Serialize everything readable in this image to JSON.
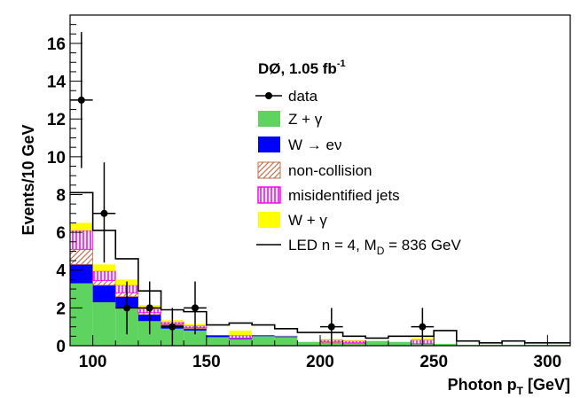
{
  "chart_data": {
    "type": "bar",
    "stacked": true,
    "xlabel": "Photon p",
    "xlabel_sub": "T",
    "xlabel_unit": " [GeV]",
    "ylabel": "Events/10 GeV",
    "annotation": "DØ, 1.05 fb",
    "annotation_sup": "-1",
    "xlim": [
      90,
      310
    ],
    "ylim": [
      0,
      17.5
    ],
    "x_ticks": [
      100,
      150,
      200,
      250,
      300
    ],
    "y_ticks": [
      0,
      2,
      4,
      6,
      8,
      10,
      12,
      14,
      16
    ],
    "bin_edges": [
      90,
      100,
      110,
      120,
      130,
      140,
      150,
      160,
      170,
      180,
      190,
      200,
      210,
      220,
      230,
      240,
      250,
      260,
      270,
      280,
      290,
      300,
      310
    ],
    "stack_order": [
      "Z + γ",
      "W → eν",
      "non-collision",
      "misidentified jets",
      "W + γ"
    ],
    "series": [
      {
        "name": "Z + γ",
        "color": "#5fd35f",
        "values": [
          3.3,
          2.3,
          2.0,
          1.3,
          0.9,
          0.8,
          0.45,
          0.35,
          0.5,
          0.45,
          0.2,
          0.15,
          0.1,
          0.25,
          0.2,
          0.1,
          0.1,
          0.05,
          0.05,
          0.05,
          0.05,
          0.05
        ]
      },
      {
        "name": "W → eν",
        "color": "#0000ff",
        "values": [
          1.0,
          0.9,
          0.6,
          0.35,
          0.2,
          0.1,
          0.1,
          0.05,
          0.05,
          0.05,
          0.0,
          0.0,
          0.0,
          0.0,
          0.0,
          0.0,
          0.0,
          0.0,
          0.0,
          0.0,
          0.0,
          0.0
        ]
      },
      {
        "name": "non-collision",
        "color": "#c07050",
        "hatch": "diagonal",
        "values": [
          0.8,
          0.25,
          0.2,
          0.1,
          0.05,
          0.05,
          0.0,
          0.0,
          0.0,
          0.0,
          0.0,
          0.05,
          0.05,
          0.0,
          0.0,
          0.0,
          0.0,
          0.0,
          0.0,
          0.0,
          0.0,
          0.0
        ]
      },
      {
        "name": "misidentified jets",
        "color": "#ff00ff",
        "hatch": "vertical",
        "values": [
          1.0,
          0.5,
          0.4,
          0.2,
          0.1,
          0.1,
          0.0,
          0.15,
          0.0,
          0.0,
          0.0,
          0.1,
          0.1,
          0.0,
          0.0,
          0.2,
          0.0,
          0.0,
          0.0,
          0.0,
          0.0,
          0.0
        ]
      },
      {
        "name": "W + γ",
        "color": "#ffff00",
        "values": [
          0.4,
          0.35,
          0.3,
          0.2,
          0.1,
          0.1,
          0.0,
          0.25,
          0.0,
          0.05,
          0.0,
          0.05,
          0.05,
          0.0,
          0.0,
          0.1,
          0.0,
          0.0,
          0.0,
          0.0,
          0.0,
          0.0
        ]
      }
    ],
    "led": {
      "name": "LED n = 4, M",
      "name_sub": "D",
      "name_suffix": " = 836 GeV",
      "color": "#000000",
      "values": [
        8.1,
        6.1,
        4.6,
        2.9,
        1.9,
        1.8,
        1.1,
        1.2,
        1.1,
        0.9,
        0.7,
        0.7,
        0.5,
        0.4,
        0.5,
        0.5,
        0.8,
        0.25,
        0.15,
        0.25,
        0.15,
        0.15
      ]
    },
    "data": {
      "name": "data",
      "color": "#000000",
      "points": [
        {
          "x": 95,
          "y": 13,
          "err_up": 3.6,
          "err_down": 3.6
        },
        {
          "x": 105,
          "y": 7,
          "err_up": 2.7,
          "err_down": 2.6
        },
        {
          "x": 115,
          "y": 2,
          "err_up": 1.4,
          "err_down": 1.4
        },
        {
          "x": 125,
          "y": 2,
          "err_up": 1.4,
          "err_down": 1.4
        },
        {
          "x": 135,
          "y": 1,
          "err_up": 1.0,
          "err_down": 1.0
        },
        {
          "x": 145,
          "y": 2,
          "err_up": 1.4,
          "err_down": 1.4
        },
        {
          "x": 205,
          "y": 1,
          "err_up": 1.0,
          "err_down": 1.0
        },
        {
          "x": 245,
          "y": 1,
          "err_up": 1.0,
          "err_down": 1.0
        }
      ]
    }
  },
  "legend": {
    "data_label": "data",
    "z_label": "Z + γ",
    "w_label": "W → eν",
    "noncoll_label": "non-collision",
    "misid_label": "misidentified jets",
    "wgamma_label": "W + γ",
    "led_label": "LED n = 4, M",
    "led_label_sub": "D",
    "led_label_suffix": " = 836 GeV"
  }
}
